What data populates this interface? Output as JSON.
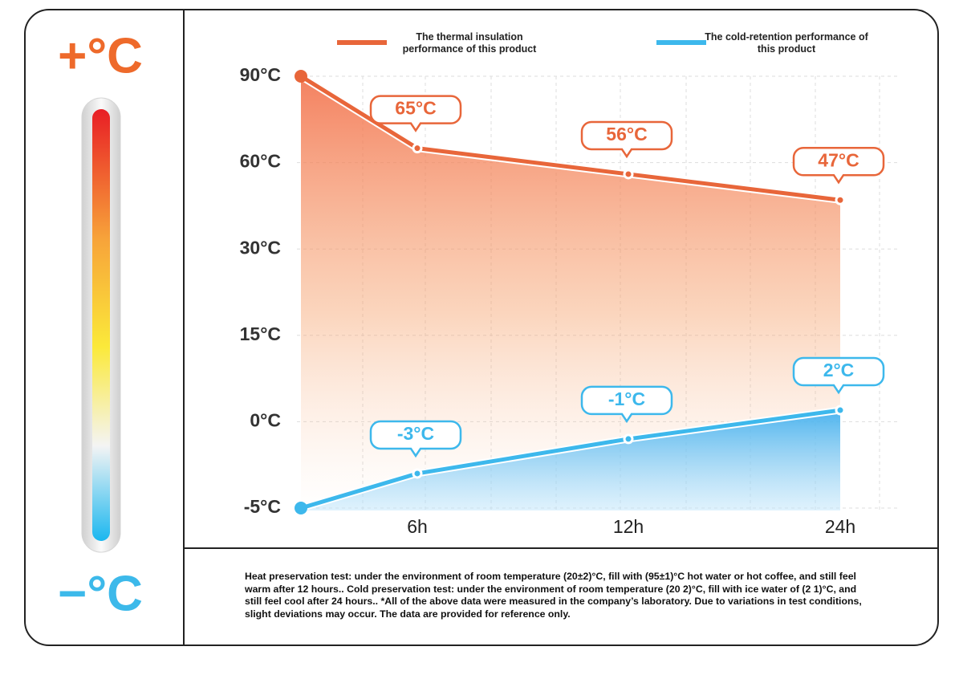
{
  "left_panel": {
    "hot_label": "+°C",
    "cold_label": "−°C"
  },
  "chart_data": {
    "type": "line",
    "categories": [
      null,
      "6h",
      "12h",
      "24h"
    ],
    "series": [
      {
        "name": "The thermal insulation performance of this product",
        "color": "#e8663a",
        "values": [
          90,
          65,
          56,
          47
        ],
        "value_labels": [
          null,
          "65°C",
          "56°C",
          "47°C"
        ]
      },
      {
        "name": "The cold-retention performance of this product",
        "color": "#3db8ec",
        "values": [
          -5,
          -3,
          -1,
          2
        ],
        "value_labels": [
          null,
          "-3°C",
          "-1°C",
          "2°C"
        ]
      }
    ],
    "ylim": [
      -5,
      90
    ],
    "yticks": [
      {
        "value": 90,
        "label": "90°C"
      },
      {
        "value": 60,
        "label": "60°C"
      },
      {
        "value": 30,
        "label": "30°C"
      },
      {
        "value": 15,
        "label": "15°C"
      },
      {
        "value": 0,
        "label": "0°C"
      },
      {
        "value": -5,
        "label": "-5°C"
      }
    ],
    "grid": true
  },
  "footnote": "Heat preservation test: under the environment of room temperature (20±2)°C, fill with (95±1)°C hot water or hot coffee, and still feel warm after 12 hours.. Cold preservation test: under the environment of room temperature (20 2)°C, fill with ice water of (2 1)°C, and still feel cool after 24 hours.. *All of the above data were measured in the company’s laboratory. Due to variations in test conditions, slight deviations may occur. The data are provided for reference only."
}
